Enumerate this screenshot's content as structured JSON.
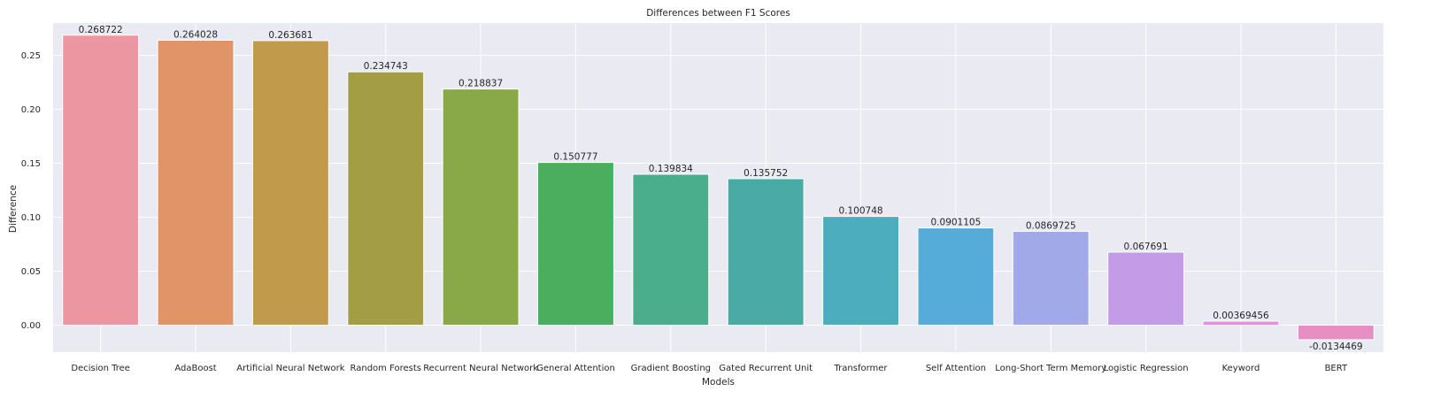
{
  "chart_data": {
    "type": "bar",
    "title": "Differences between F1 Scores",
    "xlabel": "Models",
    "ylabel": "Difference",
    "ylim": [
      -0.025,
      0.28
    ],
    "yticks": [
      0.0,
      0.05,
      0.1,
      0.15,
      0.2,
      0.25
    ],
    "ytick_labels": [
      "0.00",
      "0.05",
      "0.10",
      "0.15",
      "0.20",
      "0.25"
    ],
    "grid": true,
    "categories": [
      "Decision Tree",
      "AdaBoost",
      "Artificial Neural Network",
      "Random Forests",
      "Recurrent Neural Network",
      "General Attention",
      "Gradient Boosting",
      "Gated Recurrent Unit",
      "Transformer",
      "Self Attention",
      "Long-Short Term Memory",
      "Logistic Regression",
      "Keyword",
      "BERT"
    ],
    "values": [
      0.268722,
      0.264028,
      0.263681,
      0.234743,
      0.218837,
      0.150777,
      0.139834,
      0.135752,
      0.100748,
      0.0901105,
      0.0869725,
      0.067691,
      0.00369456,
      -0.0134469
    ],
    "value_labels": [
      "0.268722",
      "0.264028",
      "0.263681",
      "0.234743",
      "0.218837",
      "0.150777",
      "0.139834",
      "0.135752",
      "0.100748",
      "0.0901105",
      "0.0869725",
      "0.067691",
      "0.00369456",
      "-0.0134469"
    ],
    "colors": [
      "#ec96a1",
      "#e29469",
      "#c19a4b",
      "#a39e45",
      "#89a847",
      "#4aae5e",
      "#4aae8c",
      "#4aaba6",
      "#4badbd",
      "#56acd8",
      "#a2a9e8",
      "#c49be6",
      "#e38ee0",
      "#e98ec5"
    ],
    "background_color": "#eaeaf2",
    "grid_color": "#ffffff"
  }
}
